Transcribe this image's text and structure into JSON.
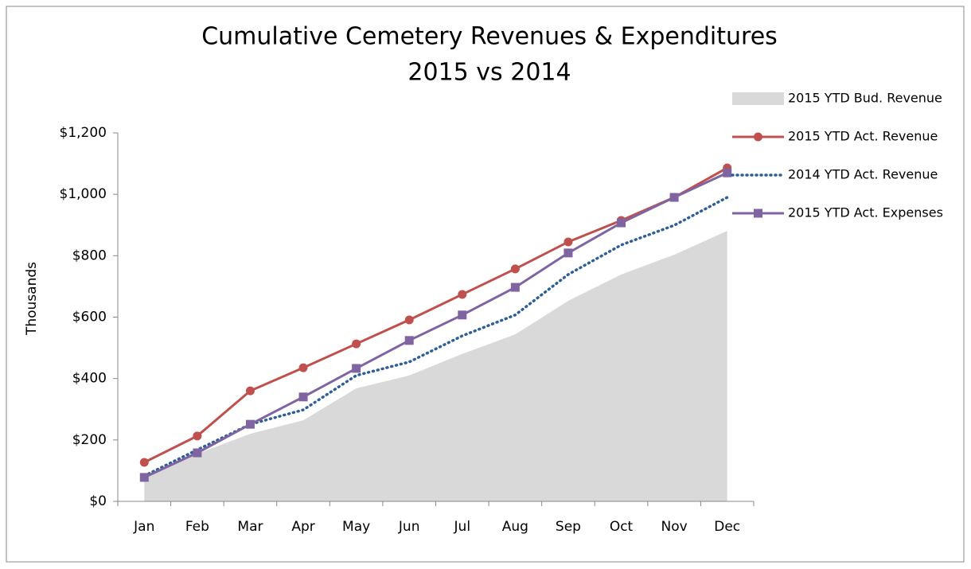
{
  "chart_data": {
    "type": "line",
    "title": "Cumulative Cemetery Revenues & Expenditures",
    "subtitle": "2015 vs 2014",
    "y_label": "Thousands",
    "categories": [
      "Jan",
      "Feb",
      "Mar",
      "Apr",
      "May",
      "Jun",
      "Jul",
      "Aug",
      "Sep",
      "Oct",
      "Nov",
      "Dec"
    ],
    "series": [
      {
        "name": "2015 YTD Bud. Revenue",
        "color": "#d9d9d9",
        "kind": "area",
        "values": [
          78,
          155,
          220,
          264,
          368,
          410,
          480,
          544,
          653,
          739,
          803,
          881
        ]
      },
      {
        "name": "2015 YTD Act. Revenue",
        "color": "#c0504d",
        "kind": "line",
        "marker": "circle",
        "values": [
          127,
          213,
          360,
          435,
          513,
          591,
          674,
          757,
          845,
          915,
          990,
          1086
        ]
      },
      {
        "name": "2014 YTD Act. Revenue",
        "color": "#2f5f98",
        "kind": "line",
        "dash": "dotted",
        "values": [
          83,
          168,
          251,
          298,
          410,
          454,
          539,
          607,
          739,
          835,
          899,
          990
        ]
      },
      {
        "name": "2015 YTD Act. Expenses",
        "color": "#8064a2",
        "kind": "line",
        "marker": "square",
        "values": [
          78,
          158,
          251,
          340,
          433,
          524,
          607,
          697,
          809,
          907,
          990,
          1070
        ]
      }
    ],
    "ylim": [
      0,
      1200
    ],
    "yticks": [
      {
        "value": 0,
        "label": "$0"
      },
      {
        "value": 200,
        "label": "$200"
      },
      {
        "value": 400,
        "label": "$400"
      },
      {
        "value": 600,
        "label": "$600"
      },
      {
        "value": 800,
        "label": "$800"
      },
      {
        "value": 1000,
        "label": "$1,000"
      },
      {
        "value": 1200,
        "label": "$1,200"
      }
    ],
    "grid": false,
    "legend": "right"
  }
}
